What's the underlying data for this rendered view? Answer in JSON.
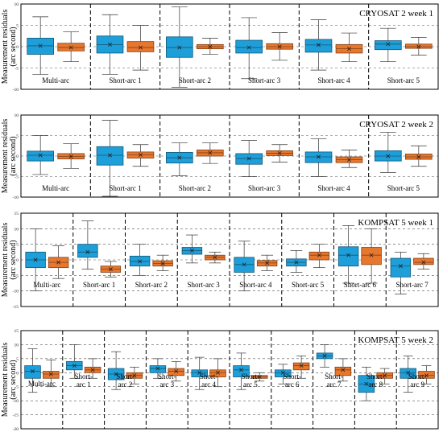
{
  "chart_data": [
    {
      "type": "box",
      "title": "CRYOSAT 2 week 1",
      "ylabel": "Measurement residuals (arc second)",
      "ylim": [
        -10,
        10
      ],
      "yticks": [
        -10,
        -5,
        0,
        5,
        10
      ],
      "grid": "horizontal dashed",
      "categories": [
        "Multi-arc",
        "Short-arc 1",
        "Short-arc 2",
        "Short-arc 3",
        "Short-arc 4",
        "Short-arc 5"
      ],
      "series": [
        {
          "color": "#1f9fd9",
          "boxes": [
            {
              "min": -6.5,
              "q1": -1.8,
              "median": 0.2,
              "q3": 2.0,
              "max": 7.0,
              "mean": 0.2
            },
            {
              "min": -6.5,
              "q1": -1.5,
              "median": 0.5,
              "q3": 2.5,
              "max": 7.5,
              "mean": 0.5
            },
            {
              "min": -9.5,
              "q1": -2.5,
              "median": -0.2,
              "q3": 2.3,
              "max": 9.3,
              "mean": -0.2
            },
            {
              "min": -7.5,
              "q1": -1.5,
              "median": -0.2,
              "q3": 1.5,
              "max": 6.8,
              "mean": -0.2
            },
            {
              "min": -5.5,
              "q1": -1.3,
              "median": 0.4,
              "q3": 1.7,
              "max": 6.3,
              "mean": 0.4
            },
            {
              "min": -3.5,
              "q1": -0.7,
              "median": 0.6,
              "q3": 1.4,
              "max": 4.3,
              "mean": 0.6
            }
          ]
        },
        {
          "color": "#e8772e",
          "boxes": [
            {
              "min": -3.5,
              "q1": -1.0,
              "median": -0.2,
              "q3": 0.8,
              "max": 3.5,
              "mean": -0.2
            },
            {
              "min": -5.5,
              "q1": -1.2,
              "median": -0.2,
              "q3": 1.2,
              "max": 5.0,
              "mean": -0.2
            },
            {
              "min": -1.8,
              "q1": -0.5,
              "median": 0.0,
              "q3": 0.5,
              "max": 2.0,
              "mean": 0.0
            },
            {
              "min": -3.2,
              "q1": -0.6,
              "median": 0.0,
              "q3": 0.7,
              "max": 3.3,
              "mean": 0.0
            },
            {
              "min": -3.5,
              "q1": -1.5,
              "median": -0.5,
              "q3": 0.5,
              "max": 3.2,
              "mean": -0.5
            },
            {
              "min": -2.0,
              "q1": -0.4,
              "median": 0.0,
              "q3": 0.6,
              "max": 2.2,
              "mean": 0.0
            }
          ]
        }
      ]
    },
    {
      "type": "box",
      "title": "CRYOSAT 2 week 2",
      "ylabel": "Measurement residuals (arc second)",
      "ylim": [
        -10,
        10
      ],
      "yticks": [
        -10,
        -5,
        0,
        5,
        10
      ],
      "grid": "horizontal dashed",
      "categories": [
        "Multi-arc",
        "Short-arc 1",
        "Short-arc 2",
        "Short-arc 3",
        "Short-arc 4",
        "Short-arc 5"
      ],
      "series": [
        {
          "color": "#1f9fd9",
          "boxes": [
            {
              "min": -4.5,
              "q1": -1.2,
              "median": 0.2,
              "q3": 1.2,
              "max": 5.0,
              "mean": 0.2
            },
            {
              "min": -9.8,
              "q1": -2.2,
              "median": 0.2,
              "q3": 2.3,
              "max": 8.7,
              "mean": 0.2
            },
            {
              "min": -4.8,
              "q1": -1.7,
              "median": -0.4,
              "q3": 0.9,
              "max": 3.2,
              "mean": -0.4
            },
            {
              "min": -5.0,
              "q1": -2.0,
              "median": -0.6,
              "q3": 0.6,
              "max": 3.8,
              "mean": -0.6
            },
            {
              "min": -5.0,
              "q1": -1.6,
              "median": -0.2,
              "q3": 1.0,
              "max": 4.2,
              "mean": -0.2
            },
            {
              "min": -4.0,
              "q1": -1.2,
              "median": 0.0,
              "q3": 1.3,
              "max": 5.8,
              "mean": 0.0
            }
          ]
        },
        {
          "color": "#e8772e",
          "boxes": [
            {
              "min": -3.0,
              "q1": -0.7,
              "median": -0.1,
              "q3": 0.6,
              "max": 3.0,
              "mean": -0.1
            },
            {
              "min": -2.5,
              "q1": -0.5,
              "median": 0.3,
              "q3": 1.0,
              "max": 2.8,
              "mean": 0.3
            },
            {
              "min": -1.8,
              "q1": 0.0,
              "median": 0.8,
              "q3": 1.5,
              "max": 3.2,
              "mean": 0.8
            },
            {
              "min": -1.5,
              "q1": 0.1,
              "median": 0.7,
              "q3": 1.3,
              "max": 2.8,
              "mean": 0.7
            },
            {
              "min": -2.8,
              "q1": -1.6,
              "median": -0.9,
              "q3": -0.2,
              "max": 1.5,
              "mean": -0.9
            },
            {
              "min": -2.5,
              "q1": -0.8,
              "median": -0.2,
              "q3": 0.5,
              "max": 2.5,
              "mean": -0.2
            }
          ]
        }
      ]
    },
    {
      "type": "box",
      "title": "KOMPSAT 5 week 1",
      "ylabel": "Measurement residuals (arc second)",
      "ylim": [
        -15,
        15
      ],
      "yticks": [
        -15,
        -10,
        -5,
        0,
        5,
        10,
        15
      ],
      "grid": "horizontal dashed",
      "categories": [
        "Multi-arc",
        "Short-arc 1",
        "Short-arc 2",
        "Short-arc 3",
        "Short-arc 4",
        "Short-arc 5",
        "Short-arc 6",
        "Short-arc 7"
      ],
      "series": [
        {
          "color": "#1f9fd9",
          "boxes": [
            {
              "min": -10.0,
              "q1": -2.5,
              "median": 0.0,
              "q3": 2.5,
              "max": 10.0,
              "mean": 0.0
            },
            {
              "min": -3.0,
              "q1": 0.8,
              "median": 2.5,
              "q3": 5.0,
              "max": 12.5,
              "mean": 2.5
            },
            {
              "min": -5.0,
              "q1": -2.0,
              "median": -0.5,
              "q3": 1.2,
              "max": 5.0,
              "mean": -0.5
            },
            {
              "min": -1.0,
              "q1": 1.8,
              "median": 3.0,
              "q3": 4.0,
              "max": 8.0,
              "mean": 3.0
            },
            {
              "min": -10.0,
              "q1": -4.0,
              "median": -1.5,
              "q3": 0.8,
              "max": 6.0,
              "mean": -1.5
            },
            {
              "min": -4.0,
              "q1": -2.0,
              "median": -0.8,
              "q3": 0.3,
              "max": 3.0,
              "mean": -0.8
            },
            {
              "min": -7.5,
              "q1": -2.0,
              "median": 1.5,
              "q3": 4.2,
              "max": 11.0,
              "mean": 1.5
            },
            {
              "min": -11.0,
              "q1": -5.5,
              "median": -2.0,
              "q3": 0.5,
              "max": 2.5,
              "mean": -2.0
            }
          ]
        },
        {
          "color": "#e8772e",
          "boxes": [
            {
              "min": -6.0,
              "q1": -2.5,
              "median": -0.8,
              "q3": 0.8,
              "max": 4.5,
              "mean": -0.8
            },
            {
              "min": -5.5,
              "q1": -4.0,
              "median": -3.0,
              "q3": -2.0,
              "max": -0.5,
              "mean": -3.0
            },
            {
              "min": -3.5,
              "q1": -2.0,
              "median": -1.2,
              "q3": -0.3,
              "max": 1.5,
              "mean": -1.2
            },
            {
              "min": -1.0,
              "q1": 0.0,
              "median": 0.8,
              "q3": 1.5,
              "max": 2.5,
              "mean": 0.8
            },
            {
              "min": -3.5,
              "q1": -2.0,
              "median": -1.0,
              "q3": -0.2,
              "max": 1.5,
              "mean": -1.0
            },
            {
              "min": -2.5,
              "q1": 0.0,
              "median": 1.5,
              "q3": 2.5,
              "max": 5.0,
              "mean": 1.5
            },
            {
              "min": -7.5,
              "q1": -1.5,
              "median": 1.5,
              "q3": 4.0,
              "max": 10.0,
              "mean": 1.5
            },
            {
              "min": -3.0,
              "q1": -1.5,
              "median": -0.8,
              "q3": 0.5,
              "max": 2.0,
              "mean": -0.8
            }
          ]
        }
      ]
    },
    {
      "type": "box",
      "title": "KOMPSAT 5 week 2",
      "ylabel": "Measurement residuals (arc second)",
      "ylim": [
        -20,
        15
      ],
      "yticks": [
        -20,
        -15,
        -10,
        -5,
        0,
        5,
        10,
        15
      ],
      "grid": "horizontal dashed",
      "categories": [
        "Multi-arc",
        "Short-\narc 1",
        "Short-\narc 2",
        "Short-\narc 3",
        "Short-\narc 4",
        "Short-\narc 5",
        "Short-\narc 6",
        "Short-\narc 7",
        "Short-\narc 8",
        "Short-\narc 9"
      ],
      "series": [
        {
          "color": "#1f9fd9",
          "boxes": [
            {
              "min": -7.0,
              "q1": -2.0,
              "median": 0.5,
              "q3": 2.5,
              "max": 8.5,
              "mean": 0.5
            },
            {
              "min": -2.0,
              "q1": 1.0,
              "median": 2.5,
              "q3": 4.0,
              "max": 10.0,
              "mean": 2.5
            },
            {
              "min": -6.0,
              "q1": -2.5,
              "median": -0.5,
              "q3": 1.5,
              "max": 7.5,
              "mean": -0.5
            },
            {
              "min": -2.0,
              "q1": 0.0,
              "median": 1.5,
              "q3": 2.5,
              "max": 5.0,
              "mean": 1.5
            },
            {
              "min": -6.0,
              "q1": -1.5,
              "median": 0.0,
              "q3": 1.0,
              "max": 5.5,
              "mean": 0.0
            },
            {
              "min": -6.0,
              "q1": -1.5,
              "median": 1.0,
              "q3": 2.5,
              "max": 7.0,
              "mean": 1.0
            },
            {
              "min": -4.0,
              "q1": -1.5,
              "median": 0.0,
              "q3": 1.0,
              "max": 3.0,
              "mean": 0.0
            },
            {
              "min": 2.0,
              "q1": 5.0,
              "median": 6.0,
              "q3": 7.0,
              "max": 10.0,
              "mean": 6.0
            },
            {
              "min": -10.0,
              "q1": -7.0,
              "median": -4.0,
              "q3": -1.0,
              "max": 2.0,
              "mean": -4.0
            },
            {
              "min": -7.0,
              "q1": -2.0,
              "median": 0.0,
              "q3": 1.5,
              "max": 6.0,
              "mean": 0.0
            }
          ]
        },
        {
          "color": "#e8772e",
          "boxes": [
            {
              "min": -5.0,
              "q1": -2.0,
              "median": -0.5,
              "q3": 0.5,
              "max": 4.5,
              "mean": -0.5
            },
            {
              "min": -2.0,
              "q1": 0.0,
              "median": 1.0,
              "q3": 2.0,
              "max": 5.0,
              "mean": 1.0
            },
            {
              "min": -4.0,
              "q1": -2.0,
              "median": -1.0,
              "q3": 0.0,
              "max": 2.0,
              "mean": -1.0
            },
            {
              "min": -3.0,
              "q1": -1.0,
              "median": 0.5,
              "q3": 1.5,
              "max": 4.0,
              "mean": 0.5
            },
            {
              "min": -5.0,
              "q1": -1.5,
              "median": 0.0,
              "q3": 1.0,
              "max": 5.0,
              "mean": 0.0
            },
            {
              "min": -3.0,
              "q1": -2.0,
              "median": -1.5,
              "q3": -1.0,
              "max": 0.0,
              "mean": -1.5
            },
            {
              "min": -2.0,
              "q1": 1.0,
              "median": 2.5,
              "q3": 3.5,
              "max": 6.0,
              "mean": 2.5
            },
            {
              "min": -3.0,
              "q1": -1.0,
              "median": 1.0,
              "q3": 2.0,
              "max": 5.0,
              "mean": 1.0
            },
            {
              "min": -4.0,
              "q1": -2.0,
              "median": -1.0,
              "q3": 0.0,
              "max": 1.5,
              "mean": -1.0
            },
            {
              "min": -4.0,
              "q1": -2.0,
              "median": -1.0,
              "q3": 0.5,
              "max": 2.5,
              "mean": -1.0
            }
          ]
        }
      ]
    }
  ]
}
